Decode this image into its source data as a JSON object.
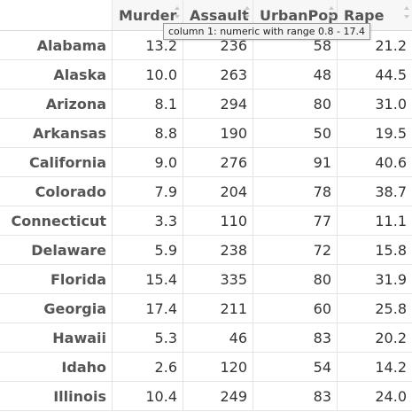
{
  "columns": {
    "c1": "Murder",
    "c2": "Assault",
    "c3": "UrbanPop",
    "c4": "Rape"
  },
  "tooltip": "column 1: numeric with range 0.8 - 17.4",
  "rows": [
    {
      "name": "Alabama",
      "murder": "13.2",
      "assault": "236",
      "urbanpop": "58",
      "rape": "21.2"
    },
    {
      "name": "Alaska",
      "murder": "10.0",
      "assault": "263",
      "urbanpop": "48",
      "rape": "44.5"
    },
    {
      "name": "Arizona",
      "murder": "8.1",
      "assault": "294",
      "urbanpop": "80",
      "rape": "31.0"
    },
    {
      "name": "Arkansas",
      "murder": "8.8",
      "assault": "190",
      "urbanpop": "50",
      "rape": "19.5"
    },
    {
      "name": "California",
      "murder": "9.0",
      "assault": "276",
      "urbanpop": "91",
      "rape": "40.6"
    },
    {
      "name": "Colorado",
      "murder": "7.9",
      "assault": "204",
      "urbanpop": "78",
      "rape": "38.7"
    },
    {
      "name": "Connecticut",
      "murder": "3.3",
      "assault": "110",
      "urbanpop": "77",
      "rape": "11.1"
    },
    {
      "name": "Delaware",
      "murder": "5.9",
      "assault": "238",
      "urbanpop": "72",
      "rape": "15.8"
    },
    {
      "name": "Florida",
      "murder": "15.4",
      "assault": "335",
      "urbanpop": "80",
      "rape": "31.9"
    },
    {
      "name": "Georgia",
      "murder": "17.4",
      "assault": "211",
      "urbanpop": "60",
      "rape": "25.8"
    },
    {
      "name": "Hawaii",
      "murder": "5.3",
      "assault": "46",
      "urbanpop": "83",
      "rape": "20.2"
    },
    {
      "name": "Idaho",
      "murder": "2.6",
      "assault": "120",
      "urbanpop": "54",
      "rape": "14.2"
    },
    {
      "name": "Illinois",
      "murder": "10.4",
      "assault": "249",
      "urbanpop": "83",
      "rape": "24.0"
    }
  ]
}
